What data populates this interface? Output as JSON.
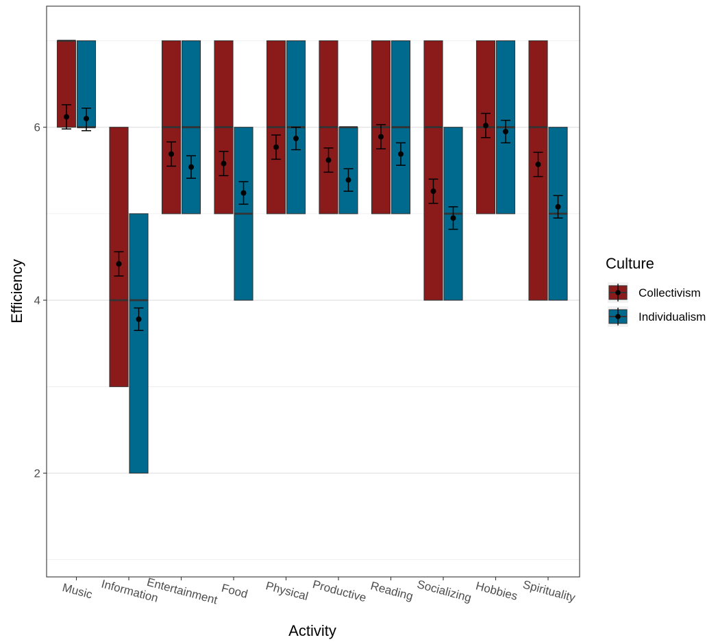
{
  "chart_data": {
    "type": "box",
    "xlabel": "Activity",
    "ylabel": "Efficiency",
    "ylim": [
      0.8,
      7.4
    ],
    "yticks": [
      2,
      4,
      6
    ],
    "minor_gridlines": [
      1,
      3,
      5,
      7
    ],
    "grid": true,
    "legend": {
      "title": "Culture",
      "placement": "right"
    },
    "categories": [
      "Music",
      "Information",
      "Entertainment",
      "Food",
      "Physical",
      "Productive",
      "Reading",
      "Socializing",
      "Hobbies",
      "Spirituality"
    ],
    "series": [
      {
        "name": "Collectivism",
        "color": "#8B1A1A",
        "boxes": [
          {
            "q1": 6,
            "median": 7,
            "q3": 7,
            "mean": 6.12,
            "ci_low": 5.98,
            "ci_high": 6.26
          },
          {
            "q1": 3,
            "median": 4,
            "q3": 6,
            "mean": 4.42,
            "ci_low": 4.28,
            "ci_high": 4.56
          },
          {
            "q1": 5,
            "median": 6,
            "q3": 7,
            "mean": 5.69,
            "ci_low": 5.55,
            "ci_high": 5.83
          },
          {
            "q1": 5,
            "median": 6,
            "q3": 7,
            "mean": 5.58,
            "ci_low": 5.44,
            "ci_high": 5.72
          },
          {
            "q1": 5,
            "median": 6,
            "q3": 7,
            "mean": 5.77,
            "ci_low": 5.63,
            "ci_high": 5.91
          },
          {
            "q1": 5,
            "median": 6,
            "q3": 7,
            "mean": 5.62,
            "ci_low": 5.48,
            "ci_high": 5.76
          },
          {
            "q1": 5,
            "median": 6,
            "q3": 7,
            "mean": 5.89,
            "ci_low": 5.75,
            "ci_high": 6.03
          },
          {
            "q1": 4,
            "median": 6,
            "q3": 7,
            "mean": 5.26,
            "ci_low": 5.12,
            "ci_high": 5.4
          },
          {
            "q1": 5,
            "median": 6,
            "q3": 7,
            "mean": 6.02,
            "ci_low": 5.88,
            "ci_high": 6.16
          },
          {
            "q1": 4,
            "median": 6,
            "q3": 7,
            "mean": 5.57,
            "ci_low": 5.43,
            "ci_high": 5.71
          }
        ]
      },
      {
        "name": "Individualism",
        "color": "#006A8E",
        "boxes": [
          {
            "q1": 6,
            "median": 6,
            "q3": 7,
            "mean": 6.1,
            "ci_low": 5.96,
            "ci_high": 6.22
          },
          {
            "q1": 2,
            "median": 4,
            "q3": 5,
            "mean": 3.78,
            "ci_low": 3.65,
            "ci_high": 3.91
          },
          {
            "q1": 5,
            "median": 6,
            "q3": 7,
            "mean": 5.54,
            "ci_low": 5.41,
            "ci_high": 5.67
          },
          {
            "q1": 4,
            "median": 5,
            "q3": 6,
            "mean": 5.24,
            "ci_low": 5.11,
            "ci_high": 5.37
          },
          {
            "q1": 5,
            "median": 6,
            "q3": 7,
            "mean": 5.87,
            "ci_low": 5.74,
            "ci_high": 6.0
          },
          {
            "q1": 5,
            "median": 6,
            "q3": 6,
            "mean": 5.39,
            "ci_low": 5.26,
            "ci_high": 5.52
          },
          {
            "q1": 5,
            "median": 6,
            "q3": 7,
            "mean": 5.69,
            "ci_low": 5.56,
            "ci_high": 5.82
          },
          {
            "q1": 4,
            "median": 5,
            "q3": 6,
            "mean": 4.95,
            "ci_low": 4.82,
            "ci_high": 5.08
          },
          {
            "q1": 5,
            "median": 6,
            "q3": 7,
            "mean": 5.95,
            "ci_low": 5.82,
            "ci_high": 6.08
          },
          {
            "q1": 4,
            "median": 5,
            "q3": 6,
            "mean": 5.08,
            "ci_low": 4.95,
            "ci_high": 5.21
          }
        ]
      }
    ]
  }
}
